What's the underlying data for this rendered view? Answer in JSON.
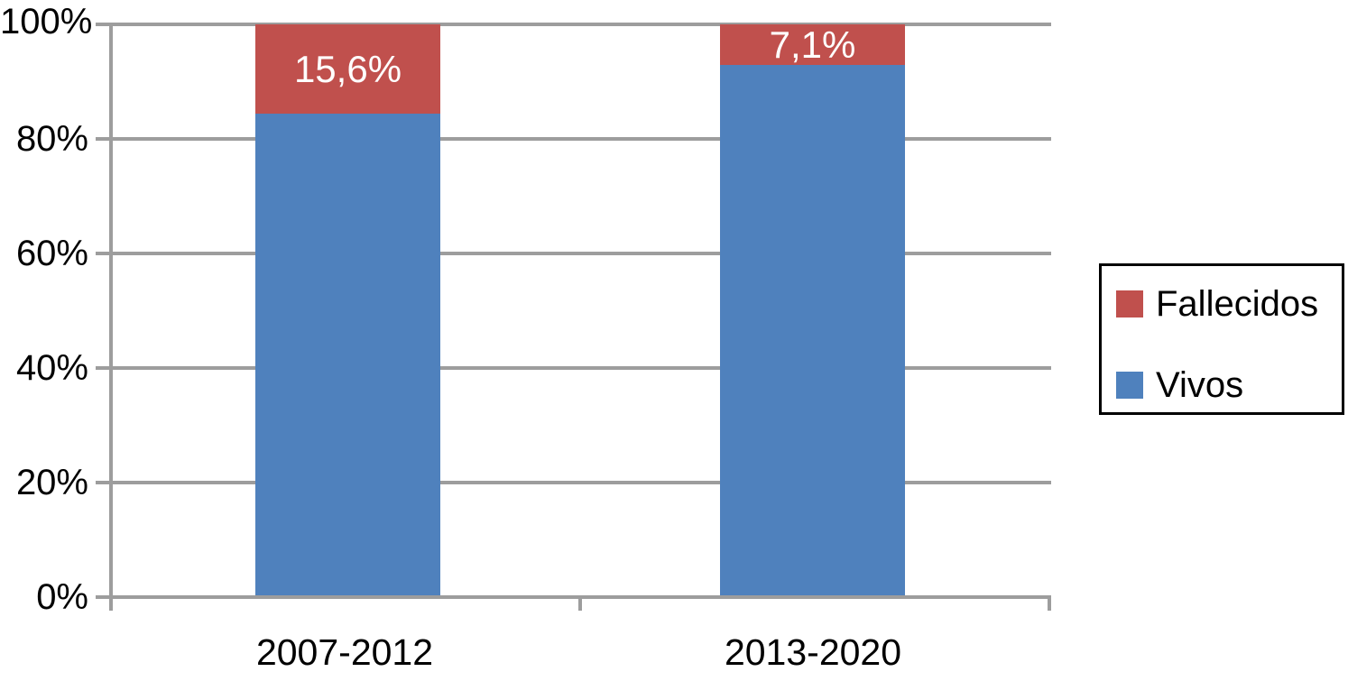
{
  "chart_data": {
    "type": "bar",
    "subtype": "stacked-100-percent",
    "title": "",
    "xlabel": "",
    "ylabel": "",
    "categories": [
      "2007-2012",
      "2013-2020"
    ],
    "series": [
      {
        "name": "Fallecidos",
        "color": "#C0504D",
        "values": [
          15.6,
          7.1
        ],
        "data_labels": [
          "15,6%",
          "7,1%"
        ]
      },
      {
        "name": "Vivos",
        "color": "#4F81BD",
        "values": [
          84.4,
          92.9
        ],
        "data_labels": [
          "",
          ""
        ]
      }
    ],
    "yticks": [
      "100%",
      "80%",
      "60%",
      "40%",
      "20%",
      "0%"
    ],
    "ylim": [
      0,
      100
    ],
    "grid": true,
    "legend_position": "right",
    "colors": {
      "gridline": "#9D9D9D",
      "axis": "#9D9D9D",
      "tick_label_text": "#000000",
      "data_label_text": "#FFFFFF",
      "legend_border": "#000000",
      "background": "#FFFFFF"
    }
  }
}
